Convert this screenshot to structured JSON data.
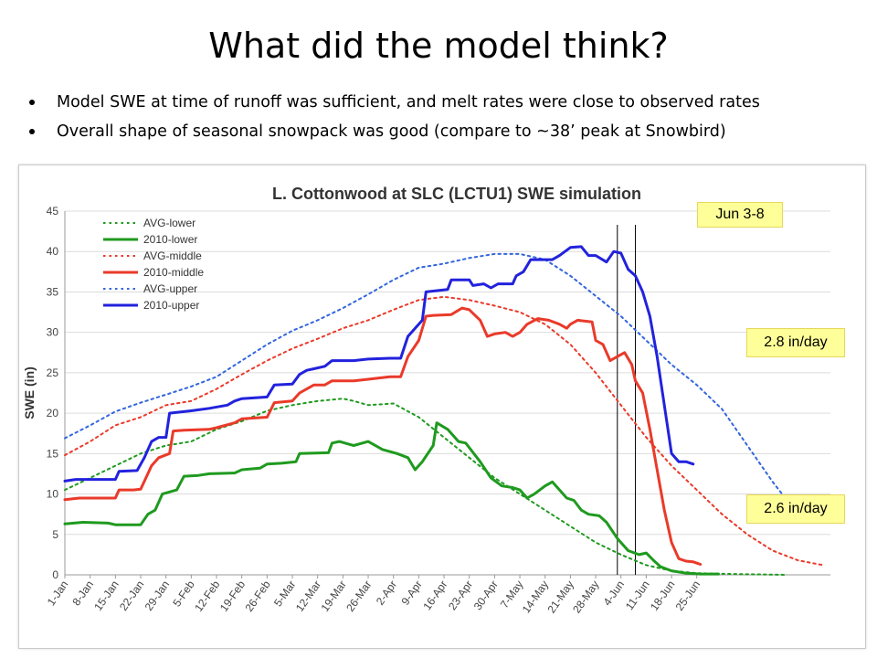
{
  "slide": {
    "title": "What did the model think?",
    "bullets": [
      "Model SWE at time of runoff was sufficient, and melt rates were close to observed rates",
      "Overall shape of seasonal snowpack was good (compare to ~38’ peak at Snowbird)"
    ]
  },
  "callouts": {
    "period": "Jun 3-8",
    "upper_rate": "2.8 in/day",
    "middle_rate": "2.6 in/day"
  },
  "chart_data": {
    "type": "line",
    "title": "L. Cottonwood at SLC (LCTU1) SWE simulation",
    "xlabel": "",
    "ylabel": "SWE (in)",
    "ylim": [
      0,
      45
    ],
    "yticks": [
      0,
      5,
      10,
      15,
      20,
      25,
      30,
      35,
      40,
      45
    ],
    "grid": "horizontal",
    "legend_position": "top-left",
    "x_tick_labels": [
      "1-Jan",
      "8-Jan",
      "15-Jan",
      "22-Jan",
      "29-Jan",
      "5-Feb",
      "12-Feb",
      "19-Feb",
      "26-Feb",
      "5-Mar",
      "12-Mar",
      "19-Mar",
      "26-Mar",
      "2-Apr",
      "9-Apr",
      "16-Apr",
      "23-Apr",
      "30-Apr",
      "7-May",
      "14-May",
      "21-May",
      "28-May",
      "4-Jun",
      "11-Jun",
      "18-Jun",
      "25-Jun"
    ],
    "highlight_period": [
      "Jun 3",
      "Jun 8"
    ],
    "series": [
      {
        "name": "AVG-lower",
        "color": "#1f9a1f",
        "style": "dotted",
        "points": [
          [
            0,
            10.5
          ],
          [
            7,
            12
          ],
          [
            14,
            13.5
          ],
          [
            21,
            15
          ],
          [
            28,
            16
          ],
          [
            35,
            16.5
          ],
          [
            42,
            18
          ],
          [
            49,
            19
          ],
          [
            56,
            20.3
          ],
          [
            63,
            21
          ],
          [
            70,
            21.5
          ],
          [
            77,
            21.8
          ],
          [
            80,
            21.5
          ],
          [
            84,
            21
          ],
          [
            91,
            21.2
          ],
          [
            98,
            19.5
          ],
          [
            105,
            17
          ],
          [
            112,
            14.5
          ],
          [
            119,
            12
          ],
          [
            126,
            10
          ],
          [
            133,
            8
          ],
          [
            140,
            6
          ],
          [
            147,
            4
          ],
          [
            154,
            2.5
          ],
          [
            161,
            1.2
          ],
          [
            168,
            0.5
          ],
          [
            175,
            0.2
          ],
          [
            185,
            0.1
          ],
          [
            200,
            0
          ]
        ]
      },
      {
        "name": "2010-lower",
        "color": "#1f9a1f",
        "style": "solid",
        "points": [
          [
            0,
            6.3
          ],
          [
            5,
            6.5
          ],
          [
            12,
            6.4
          ],
          [
            14,
            6.2
          ],
          [
            21,
            6.2
          ],
          [
            23,
            7.5
          ],
          [
            25,
            8
          ],
          [
            27,
            10
          ],
          [
            31,
            10.5
          ],
          [
            33,
            12.2
          ],
          [
            37,
            12.3
          ],
          [
            40,
            12.5
          ],
          [
            47,
            12.6
          ],
          [
            49,
            13
          ],
          [
            54,
            13.2
          ],
          [
            56,
            13.7
          ],
          [
            60,
            13.8
          ],
          [
            64,
            14
          ],
          [
            65,
            15
          ],
          [
            73,
            15.1
          ],
          [
            74,
            16.3
          ],
          [
            76,
            16.5
          ],
          [
            80,
            16
          ],
          [
            84,
            16.5
          ],
          [
            88,
            15.5
          ],
          [
            92,
            15
          ],
          [
            95,
            14.5
          ],
          [
            97,
            13
          ],
          [
            99,
            14
          ],
          [
            102,
            16
          ],
          [
            103,
            18.8
          ],
          [
            106,
            18
          ],
          [
            109,
            16.5
          ],
          [
            111,
            16.3
          ],
          [
            115,
            14
          ],
          [
            118,
            12
          ],
          [
            121,
            11
          ],
          [
            124,
            10.8
          ],
          [
            126,
            10.5
          ],
          [
            128,
            9.5
          ],
          [
            130,
            10
          ],
          [
            133,
            11
          ],
          [
            135,
            11.5
          ],
          [
            137,
            10.5
          ],
          [
            139,
            9.5
          ],
          [
            141,
            9.2
          ],
          [
            143,
            8
          ],
          [
            145,
            7.5
          ],
          [
            148,
            7.3
          ],
          [
            150,
            6.5
          ],
          [
            153,
            4.5
          ],
          [
            156,
            3
          ],
          [
            159,
            2.5
          ],
          [
            161,
            2.7
          ],
          [
            163,
            1.8
          ],
          [
            165,
            1
          ],
          [
            168,
            0.5
          ],
          [
            172,
            0.2
          ],
          [
            176,
            0.1
          ],
          [
            181,
            0.1
          ]
        ]
      },
      {
        "name": "AVG-middle",
        "color": "#ea3a2a",
        "style": "dotted",
        "points": [
          [
            0,
            14.8
          ],
          [
            7,
            16.5
          ],
          [
            14,
            18.5
          ],
          [
            21,
            19.5
          ],
          [
            28,
            21
          ],
          [
            35,
            21.5
          ],
          [
            42,
            23
          ],
          [
            49,
            24.8
          ],
          [
            56,
            26.5
          ],
          [
            63,
            28
          ],
          [
            70,
            29.2
          ],
          [
            77,
            30.5
          ],
          [
            84,
            31.5
          ],
          [
            91,
            32.8
          ],
          [
            98,
            34
          ],
          [
            105,
            34.4
          ],
          [
            112,
            34
          ],
          [
            119,
            33.3
          ],
          [
            126,
            32.5
          ],
          [
            133,
            31
          ],
          [
            140,
            28.5
          ],
          [
            147,
            25
          ],
          [
            154,
            21
          ],
          [
            161,
            17
          ],
          [
            168,
            13.5
          ],
          [
            175,
            10.5
          ],
          [
            182,
            7.5
          ],
          [
            189,
            5
          ],
          [
            196,
            3
          ],
          [
            203,
            1.8
          ],
          [
            210,
            1.2
          ]
        ]
      },
      {
        "name": "2010-middle",
        "color": "#ea3a2a",
        "style": "solid",
        "points": [
          [
            0,
            9.3
          ],
          [
            4,
            9.5
          ],
          [
            10,
            9.5
          ],
          [
            14,
            9.5
          ],
          [
            15,
            10.5
          ],
          [
            19,
            10.5
          ],
          [
            21,
            10.6
          ],
          [
            24,
            13.5
          ],
          [
            26,
            14.5
          ],
          [
            29,
            15
          ],
          [
            30,
            17.8
          ],
          [
            33,
            17.9
          ],
          [
            40,
            18
          ],
          [
            42,
            18.2
          ],
          [
            47,
            18.8
          ],
          [
            49,
            19.3
          ],
          [
            56,
            19.5
          ],
          [
            58,
            21.3
          ],
          [
            63,
            21.5
          ],
          [
            65,
            22.5
          ],
          [
            67,
            23
          ],
          [
            69,
            23.5
          ],
          [
            72,
            23.5
          ],
          [
            74,
            24
          ],
          [
            80,
            24
          ],
          [
            84,
            24.2
          ],
          [
            90,
            24.5
          ],
          [
            93,
            24.5
          ],
          [
            95,
            27
          ],
          [
            98,
            29
          ],
          [
            100,
            32
          ],
          [
            102,
            32.1
          ],
          [
            107,
            32.2
          ],
          [
            110,
            33
          ],
          [
            112,
            32.8
          ],
          [
            115,
            31.5
          ],
          [
            117,
            29.5
          ],
          [
            119,
            29.8
          ],
          [
            122,
            30
          ],
          [
            124,
            29.5
          ],
          [
            126,
            30
          ],
          [
            128,
            31
          ],
          [
            131,
            31.7
          ],
          [
            134,
            31.5
          ],
          [
            137,
            31
          ],
          [
            139,
            30.5
          ],
          [
            140,
            31
          ],
          [
            142,
            31.5
          ],
          [
            146,
            31.3
          ],
          [
            147,
            29
          ],
          [
            149,
            28.5
          ],
          [
            151,
            26.5
          ],
          [
            153,
            27
          ],
          [
            155,
            27.5
          ],
          [
            157,
            26
          ],
          [
            158,
            24
          ],
          [
            160,
            22.5
          ],
          [
            162,
            18
          ],
          [
            164,
            13
          ],
          [
            166,
            8
          ],
          [
            168,
            4
          ],
          [
            170,
            2
          ],
          [
            172,
            1.7
          ],
          [
            174,
            1.6
          ],
          [
            176,
            1.3
          ]
        ]
      },
      {
        "name": "AVG-upper",
        "color": "#3366dd",
        "style": "dotted",
        "points": [
          [
            0,
            16.9
          ],
          [
            7,
            18.5
          ],
          [
            14,
            20.2
          ],
          [
            21,
            21.3
          ],
          [
            28,
            22.3
          ],
          [
            35,
            23.3
          ],
          [
            42,
            24.5
          ],
          [
            49,
            26.5
          ],
          [
            56,
            28.5
          ],
          [
            63,
            30.2
          ],
          [
            70,
            31.5
          ],
          [
            77,
            33
          ],
          [
            84,
            34.7
          ],
          [
            91,
            36.5
          ],
          [
            98,
            38
          ],
          [
            105,
            38.5
          ],
          [
            112,
            39.2
          ],
          [
            119,
            39.7
          ],
          [
            126,
            39.7
          ],
          [
            133,
            39
          ],
          [
            140,
            37
          ],
          [
            147,
            34.5
          ],
          [
            154,
            32
          ],
          [
            161,
            29
          ],
          [
            168,
            26
          ],
          [
            175,
            23.5
          ],
          [
            182,
            20.5
          ],
          [
            189,
            16
          ],
          [
            196,
            11.5
          ],
          [
            203,
            7.5
          ]
        ]
      },
      {
        "name": "2010-upper",
        "color": "#2222dd",
        "style": "solid",
        "points": [
          [
            0,
            11.6
          ],
          [
            3,
            11.8
          ],
          [
            10,
            11.8
          ],
          [
            14,
            11.8
          ],
          [
            15,
            12.8
          ],
          [
            20,
            12.9
          ],
          [
            22,
            14.5
          ],
          [
            24,
            16.5
          ],
          [
            26,
            17
          ],
          [
            28,
            17
          ],
          [
            29,
            20
          ],
          [
            35,
            20.3
          ],
          [
            40,
            20.6
          ],
          [
            45,
            21
          ],
          [
            47,
            21.5
          ],
          [
            49,
            21.8
          ],
          [
            56,
            22
          ],
          [
            58,
            23.5
          ],
          [
            63,
            23.6
          ],
          [
            65,
            24.8
          ],
          [
            67,
            25.3
          ],
          [
            69,
            25.5
          ],
          [
            72,
            25.8
          ],
          [
            74,
            26.5
          ],
          [
            80,
            26.5
          ],
          [
            84,
            26.7
          ],
          [
            90,
            26.8
          ],
          [
            93,
            26.8
          ],
          [
            95,
            29.5
          ],
          [
            99,
            31.5
          ],
          [
            100,
            35
          ],
          [
            106,
            35.3
          ],
          [
            107,
            36.5
          ],
          [
            112,
            36.5
          ],
          [
            113,
            35.8
          ],
          [
            116,
            36
          ],
          [
            118,
            35.5
          ],
          [
            120,
            36
          ],
          [
            124,
            36
          ],
          [
            125,
            37
          ],
          [
            127,
            37.5
          ],
          [
            129,
            39
          ],
          [
            132,
            39
          ],
          [
            135,
            39
          ],
          [
            137,
            39.5
          ],
          [
            140,
            40.5
          ],
          [
            143,
            40.6
          ],
          [
            145,
            39.5
          ],
          [
            147,
            39.5
          ],
          [
            150,
            38.7
          ],
          [
            152,
            40
          ],
          [
            154,
            39.8
          ],
          [
            156,
            37.8
          ],
          [
            158,
            37
          ],
          [
            160,
            35
          ],
          [
            162,
            32
          ],
          [
            164,
            27
          ],
          [
            166,
            21
          ],
          [
            168,
            15
          ],
          [
            170,
            14
          ],
          [
            172,
            14
          ],
          [
            174,
            13.7
          ]
        ]
      }
    ]
  }
}
